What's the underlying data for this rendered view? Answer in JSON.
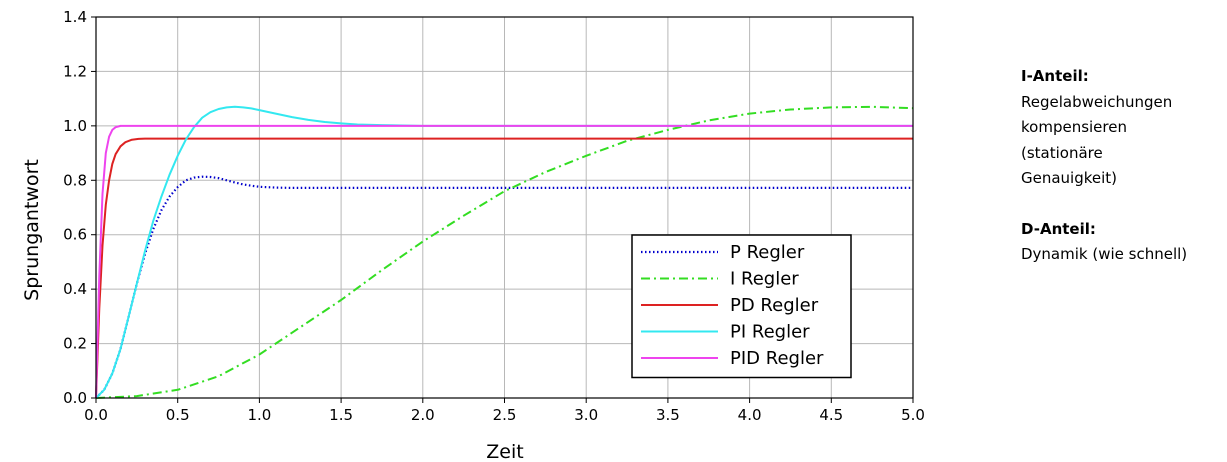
{
  "chart_data": {
    "type": "line",
    "title": "",
    "xlabel": "Zeit",
    "ylabel": "Sprungantwort",
    "xlim": [
      0,
      5
    ],
    "ylim": [
      0,
      1.4
    ],
    "xticks": [
      "0.0",
      "0.5",
      "1.0",
      "1.5",
      "2.0",
      "2.5",
      "3.0",
      "3.5",
      "4.0",
      "4.5",
      "5.0"
    ],
    "yticks": [
      "0.0",
      "0.2",
      "0.4",
      "0.6",
      "0.8",
      "1.0",
      "1.2",
      "1.4"
    ],
    "grid": true,
    "legend_position": "lower-right",
    "series": [
      {
        "name": "P Regler",
        "color": "#0000cc",
        "style": "dotted",
        "x": [
          0,
          0.05,
          0.1,
          0.15,
          0.2,
          0.25,
          0.3,
          0.35,
          0.4,
          0.45,
          0.5,
          0.55,
          0.6,
          0.65,
          0.7,
          0.75,
          0.8,
          0.85,
          0.9,
          0.95,
          1.0,
          1.1,
          1.2,
          1.4,
          1.6,
          2.0,
          3.0,
          4.0,
          5.0
        ],
        "y": [
          0,
          0.03,
          0.09,
          0.18,
          0.3,
          0.42,
          0.53,
          0.62,
          0.69,
          0.74,
          0.775,
          0.8,
          0.81,
          0.813,
          0.812,
          0.808,
          0.8,
          0.792,
          0.785,
          0.78,
          0.776,
          0.773,
          0.772,
          0.772,
          0.772,
          0.772,
          0.772,
          0.772,
          0.772
        ]
      },
      {
        "name": "I Regler",
        "color": "#33dd22",
        "style": "dashdot",
        "x": [
          0,
          0.25,
          0.5,
          0.75,
          1.0,
          1.25,
          1.5,
          1.75,
          2.0,
          2.25,
          2.5,
          2.75,
          3.0,
          3.25,
          3.5,
          3.75,
          4.0,
          4.25,
          4.5,
          4.75,
          5.0
        ],
        "y": [
          0,
          0.007,
          0.03,
          0.08,
          0.16,
          0.26,
          0.36,
          0.47,
          0.575,
          0.67,
          0.76,
          0.83,
          0.89,
          0.945,
          0.985,
          1.02,
          1.045,
          1.06,
          1.068,
          1.07,
          1.065
        ]
      },
      {
        "name": "PD Regler",
        "color": "#dd2222",
        "style": "solid",
        "x": [
          0,
          0.02,
          0.04,
          0.06,
          0.08,
          0.1,
          0.12,
          0.15,
          0.18,
          0.22,
          0.26,
          0.3,
          0.4,
          0.6,
          1.0,
          2.0,
          3.0,
          4.0,
          5.0
        ],
        "y": [
          0,
          0.33,
          0.56,
          0.71,
          0.8,
          0.86,
          0.896,
          0.925,
          0.94,
          0.949,
          0.952,
          0.953,
          0.953,
          0.953,
          0.953,
          0.953,
          0.953,
          0.953,
          0.953
        ]
      },
      {
        "name": "PI Regler",
        "color": "#33e8f0",
        "style": "solid",
        "x": [
          0,
          0.05,
          0.1,
          0.15,
          0.2,
          0.25,
          0.3,
          0.35,
          0.4,
          0.45,
          0.5,
          0.55,
          0.6,
          0.65,
          0.7,
          0.75,
          0.8,
          0.85,
          0.9,
          0.95,
          1.0,
          1.1,
          1.2,
          1.3,
          1.4,
          1.5,
          1.6,
          1.8,
          2.0,
          2.5,
          3.0,
          4.0,
          5.0
        ],
        "y": [
          0,
          0.03,
          0.09,
          0.18,
          0.3,
          0.42,
          0.54,
          0.65,
          0.74,
          0.82,
          0.89,
          0.95,
          0.995,
          1.03,
          1.05,
          1.062,
          1.068,
          1.07,
          1.068,
          1.064,
          1.058,
          1.045,
          1.032,
          1.022,
          1.014,
          1.009,
          1.005,
          1.002,
          1.0,
          1.0,
          1.0,
          1.0,
          1.0
        ]
      },
      {
        "name": "PID Regler",
        "color": "#ee44ee",
        "style": "solid",
        "x": [
          0,
          0.02,
          0.04,
          0.06,
          0.08,
          0.1,
          0.12,
          0.15,
          0.2,
          0.3,
          1.0,
          2.0,
          3.0,
          4.0,
          5.0
        ],
        "y": [
          0,
          0.45,
          0.75,
          0.9,
          0.96,
          0.985,
          0.995,
          1.0,
          1.0,
          1.0,
          1.0,
          1.0,
          1.0,
          1.0,
          1.0
        ]
      }
    ]
  },
  "side_notes": {
    "i_heading": "I-Anteil:",
    "i_lines": [
      "Regelabweichungen",
      "kompensieren",
      "(stationäre",
      "Genauigkeit)"
    ],
    "d_heading": "D-Anteil:",
    "d_lines": [
      "Dynamik (wie schnell)"
    ]
  }
}
